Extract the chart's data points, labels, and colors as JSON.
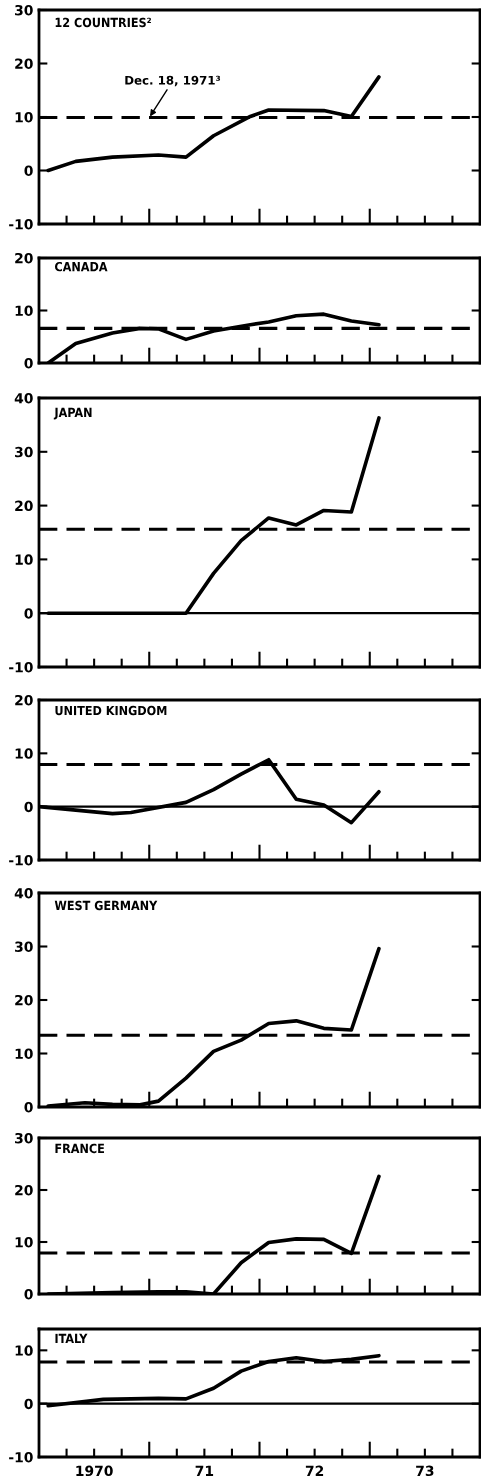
{
  "chart_data": [
    {
      "type": "line",
      "title": "12 COUNTRIES²",
      "x": [
        "1970-02",
        "1970-05",
        "1970-09",
        "1971-02",
        "1971-05",
        "1971-08",
        "1971-12",
        "1972-02",
        "1972-08",
        "1972-11",
        "1973-02"
      ],
      "series": [
        {
          "color": "#000000",
          "values": [
            0,
            1.7,
            2.5,
            2.9,
            2.5,
            6.5,
            10.1,
            11.3,
            11.2,
            10.1,
            17.5
          ]
        }
      ],
      "xlim": [
        "1970-01-01",
        "1974-01-01"
      ],
      "ylim": [
        -10,
        30
      ],
      "yticks": [
        -10,
        0,
        10,
        20,
        30
      ],
      "xticks": [
        {
          "value": "1970-04-01",
          "label": null
        },
        {
          "value": "1970-07-01",
          "label": null
        },
        {
          "value": "1970-10-01",
          "label": null
        },
        {
          "value": "1971-01-01",
          "label": null
        },
        {
          "value": "1971-04-01",
          "label": null
        },
        {
          "value": "1971-07-01",
          "label": null
        },
        {
          "value": "1971-10-01",
          "label": null
        },
        {
          "value": "1972-01-01",
          "label": null
        },
        {
          "value": "1972-04-01",
          "label": null
        },
        {
          "value": "1972-07-01",
          "label": null
        },
        {
          "value": "1972-10-01",
          "label": null
        },
        {
          "value": "1973-01-01",
          "label": null
        },
        {
          "value": "1973-04-01",
          "label": null
        },
        {
          "value": "1973-07-01",
          "label": null
        },
        {
          "value": "1973-10-01",
          "label": null
        }
      ],
      "ref_lines": [
        {
          "axis": "y",
          "value": 9.9,
          "color": "#000000",
          "line_style": "dashed"
        }
      ],
      "annotations": [
        {
          "text": "Dec. 18, 1971³",
          "x": "1971-01-01",
          "y": 9.9
        }
      ],
      "tick_labels": "y"
    },
    {
      "type": "line",
      "title": "CANADA",
      "x": [
        "1970-02",
        "1970-05",
        "1970-09",
        "1970-12",
        "1971-02",
        "1971-05",
        "1971-08",
        "1971-12",
        "1972-02",
        "1972-05",
        "1972-08",
        "1972-11",
        "1973-02"
      ],
      "series": [
        {
          "color": "#000000",
          "values": [
            0,
            3.7,
            5.7,
            6.6,
            6.5,
            4.5,
            6.1,
            7.3,
            7.8,
            9.0,
            9.3,
            8.0,
            7.3
          ]
        }
      ],
      "xlim": [
        "1970-01-01",
        "1974-01-01"
      ],
      "ylim": [
        0,
        20
      ],
      "yticks": [
        0,
        10,
        20
      ],
      "xticks": [
        {
          "value": "1970-04-01",
          "label": null
        },
        {
          "value": "1970-07-01",
          "label": null
        },
        {
          "value": "1970-10-01",
          "label": null
        },
        {
          "value": "1971-01-01",
          "label": null
        },
        {
          "value": "1971-04-01",
          "label": null
        },
        {
          "value": "1971-07-01",
          "label": null
        },
        {
          "value": "1971-10-01",
          "label": null
        },
        {
          "value": "1972-01-01",
          "label": null
        },
        {
          "value": "1972-04-01",
          "label": null
        },
        {
          "value": "1972-07-01",
          "label": null
        },
        {
          "value": "1972-10-01",
          "label": null
        },
        {
          "value": "1973-01-01",
          "label": null
        },
        {
          "value": "1973-04-01",
          "label": null
        },
        {
          "value": "1973-07-01",
          "label": null
        },
        {
          "value": "1973-10-01",
          "label": null
        }
      ],
      "ref_lines": [
        {
          "axis": "y",
          "value": 6.6,
          "color": "#000000",
          "line_style": "dashed"
        }
      ],
      "tick_labels": "y"
    },
    {
      "type": "line",
      "title": "JAPAN",
      "x": [
        "1970-02",
        "1971-05",
        "1971-08",
        "1971-11",
        "1972-02",
        "1972-05",
        "1972-08",
        "1972-11",
        "1973-02"
      ],
      "series": [
        {
          "color": "#000000",
          "values": [
            0,
            0,
            7.4,
            13.5,
            17.7,
            16.4,
            19.1,
            18.8,
            36.3
          ]
        }
      ],
      "xlim": [
        "1970-01-01",
        "1974-01-01"
      ],
      "ylim": [
        -10,
        40
      ],
      "yticks": [
        -10,
        0,
        10,
        20,
        30,
        40
      ],
      "xticks": [
        {
          "value": "1970-04-01",
          "label": null
        },
        {
          "value": "1970-07-01",
          "label": null
        },
        {
          "value": "1970-10-01",
          "label": null
        },
        {
          "value": "1971-01-01",
          "label": null
        },
        {
          "value": "1971-04-01",
          "label": null
        },
        {
          "value": "1971-07-01",
          "label": null
        },
        {
          "value": "1971-10-01",
          "label": null
        },
        {
          "value": "1972-01-01",
          "label": null
        },
        {
          "value": "1972-04-01",
          "label": null
        },
        {
          "value": "1972-07-01",
          "label": null
        },
        {
          "value": "1972-10-01",
          "label": null
        },
        {
          "value": "1973-01-01",
          "label": null
        },
        {
          "value": "1973-04-01",
          "label": null
        },
        {
          "value": "1973-07-01",
          "label": null
        },
        {
          "value": "1973-10-01",
          "label": null
        }
      ],
      "ref_lines": [
        {
          "axis": "y",
          "value": 15.6,
          "color": "#000000",
          "line_style": "dashed"
        },
        {
          "axis": "y",
          "value": 0,
          "color": "#000000",
          "line_style": "solid"
        }
      ],
      "tick_labels": "y"
    },
    {
      "type": "line",
      "title": "UNITED KINGDOM",
      "x": [
        "1970-01",
        "1970-09",
        "1970-11",
        "1971-05",
        "1971-08",
        "1971-11",
        "1972-02",
        "1972-05",
        "1972-08",
        "1972-11",
        "1973-02"
      ],
      "series": [
        {
          "color": "#000000",
          "values": [
            0,
            -1.3,
            -1.1,
            0.8,
            3.2,
            6.1,
            8.8,
            1.4,
            0.3,
            -3.0,
            2.8
          ]
        }
      ],
      "xlim": [
        "1970-01-01",
        "1974-01-01"
      ],
      "ylim": [
        -10,
        20
      ],
      "yticks": [
        -10,
        0,
        10,
        20
      ],
      "xticks": [
        {
          "value": "1970-04-01",
          "label": null
        },
        {
          "value": "1970-07-01",
          "label": null
        },
        {
          "value": "1970-10-01",
          "label": null
        },
        {
          "value": "1971-01-01",
          "label": null
        },
        {
          "value": "1971-04-01",
          "label": null
        },
        {
          "value": "1971-07-01",
          "label": null
        },
        {
          "value": "1971-10-01",
          "label": null
        },
        {
          "value": "1972-01-01",
          "label": null
        },
        {
          "value": "1972-04-01",
          "label": null
        },
        {
          "value": "1972-07-01",
          "label": null
        },
        {
          "value": "1972-10-01",
          "label": null
        },
        {
          "value": "1973-01-01",
          "label": null
        },
        {
          "value": "1973-04-01",
          "label": null
        },
        {
          "value": "1973-07-01",
          "label": null
        },
        {
          "value": "1973-10-01",
          "label": null
        }
      ],
      "ref_lines": [
        {
          "axis": "y",
          "value": 7.9,
          "color": "#000000",
          "line_style": "dashed"
        },
        {
          "axis": "y",
          "value": 0,
          "color": "#000000",
          "line_style": "solid"
        }
      ],
      "tick_labels": "y"
    },
    {
      "type": "line",
      "title": "WEST GERMANY",
      "x": [
        "1970-02",
        "1970-06",
        "1970-09",
        "1970-12",
        "1971-02",
        "1971-05",
        "1971-08",
        "1971-11",
        "1972-02",
        "1972-05",
        "1972-08",
        "1972-11",
        "1973-02"
      ],
      "series": [
        {
          "color": "#000000",
          "values": [
            0.2,
            0.8,
            0.5,
            0.4,
            1.1,
            5.4,
            10.4,
            12.5,
            15.6,
            16.1,
            14.7,
            14.4,
            29.6
          ]
        }
      ],
      "xlim": [
        "1970-01-01",
        "1974-01-01"
      ],
      "ylim": [
        0,
        40
      ],
      "yticks": [
        0,
        10,
        20,
        30,
        40
      ],
      "xticks": [
        {
          "value": "1970-04-01",
          "label": null
        },
        {
          "value": "1970-07-01",
          "label": null
        },
        {
          "value": "1970-10-01",
          "label": null
        },
        {
          "value": "1971-01-01",
          "label": null
        },
        {
          "value": "1971-04-01",
          "label": null
        },
        {
          "value": "1971-07-01",
          "label": null
        },
        {
          "value": "1971-10-01",
          "label": null
        },
        {
          "value": "1972-01-01",
          "label": null
        },
        {
          "value": "1972-04-01",
          "label": null
        },
        {
          "value": "1972-07-01",
          "label": null
        },
        {
          "value": "1972-10-01",
          "label": null
        },
        {
          "value": "1973-01-01",
          "label": null
        },
        {
          "value": "1973-04-01",
          "label": null
        },
        {
          "value": "1973-07-01",
          "label": null
        },
        {
          "value": "1973-10-01",
          "label": null
        }
      ],
      "ref_lines": [
        {
          "axis": "y",
          "value": 13.4,
          "color": "#000000",
          "line_style": "dashed"
        }
      ],
      "tick_labels": "y"
    },
    {
      "type": "line",
      "title": "FRANCE",
      "x": [
        "1970-02",
        "1970-09",
        "1971-02",
        "1971-05",
        "1971-08",
        "1971-11",
        "1972-02",
        "1972-05",
        "1972-08",
        "1972-11",
        "1973-02"
      ],
      "series": [
        {
          "color": "#000000",
          "values": [
            0,
            0.3,
            0.4,
            0.4,
            0,
            6.0,
            9.9,
            10.6,
            10.5,
            7.8,
            22.6
          ]
        }
      ],
      "xlim": [
        "1970-01-01",
        "1974-01-01"
      ],
      "ylim": [
        0,
        30
      ],
      "yticks": [
        0,
        10,
        20,
        30
      ],
      "xticks": [
        {
          "value": "1970-04-01",
          "label": null
        },
        {
          "value": "1970-07-01",
          "label": null
        },
        {
          "value": "1970-10-01",
          "label": null
        },
        {
          "value": "1971-01-01",
          "label": null
        },
        {
          "value": "1971-04-01",
          "label": null
        },
        {
          "value": "1971-07-01",
          "label": null
        },
        {
          "value": "1971-10-01",
          "label": null
        },
        {
          "value": "1972-01-01",
          "label": null
        },
        {
          "value": "1972-04-01",
          "label": null
        },
        {
          "value": "1972-07-01",
          "label": null
        },
        {
          "value": "1972-10-01",
          "label": null
        },
        {
          "value": "1973-01-01",
          "label": null
        },
        {
          "value": "1973-04-01",
          "label": null
        },
        {
          "value": "1973-07-01",
          "label": null
        },
        {
          "value": "1973-10-01",
          "label": null
        }
      ],
      "ref_lines": [
        {
          "axis": "y",
          "value": 7.9,
          "color": "#000000",
          "line_style": "dashed"
        }
      ],
      "tick_labels": "y"
    },
    {
      "type": "line",
      "title": "ITALY",
      "x": [
        "1970-02",
        "1970-08",
        "1971-02",
        "1971-05",
        "1971-08",
        "1971-11",
        "1972-02",
        "1972-05",
        "1972-08",
        "1972-11",
        "1973-02"
      ],
      "series": [
        {
          "color": "#000000",
          "values": [
            -0.4,
            0.8,
            1.0,
            0.9,
            2.9,
            6.1,
            7.9,
            8.6,
            7.9,
            8.3,
            9.0
          ]
        }
      ],
      "xlim": [
        "1970-01-01",
        "1974-01-01"
      ],
      "ylim": [
        -10,
        14
      ],
      "yticks": [
        -10,
        0,
        10
      ],
      "xticks": [
        {
          "value": "1970-04-01",
          "label": null
        },
        {
          "value": "1970-07-01",
          "label": "1970"
        },
        {
          "value": "1970-10-01",
          "label": null
        },
        {
          "value": "1971-01-01",
          "label": null
        },
        {
          "value": "1971-04-01",
          "label": null
        },
        {
          "value": "1971-07-01",
          "label": "71"
        },
        {
          "value": "1971-10-01",
          "label": null
        },
        {
          "value": "1972-01-01",
          "label": null
        },
        {
          "value": "1972-04-01",
          "label": null
        },
        {
          "value": "1972-07-01",
          "label": "72"
        },
        {
          "value": "1972-10-01",
          "label": null
        },
        {
          "value": "1973-01-01",
          "label": null
        },
        {
          "value": "1973-04-01",
          "label": null
        },
        {
          "value": "1973-07-01",
          "label": "73"
        },
        {
          "value": "1973-10-01",
          "label": null
        }
      ],
      "ref_lines": [
        {
          "axis": "y",
          "value": 7.8,
          "color": "#000000",
          "line_style": "dashed"
        },
        {
          "axis": "y",
          "value": 0,
          "color": "#000000",
          "line_style": "solid"
        }
      ]
    }
  ]
}
